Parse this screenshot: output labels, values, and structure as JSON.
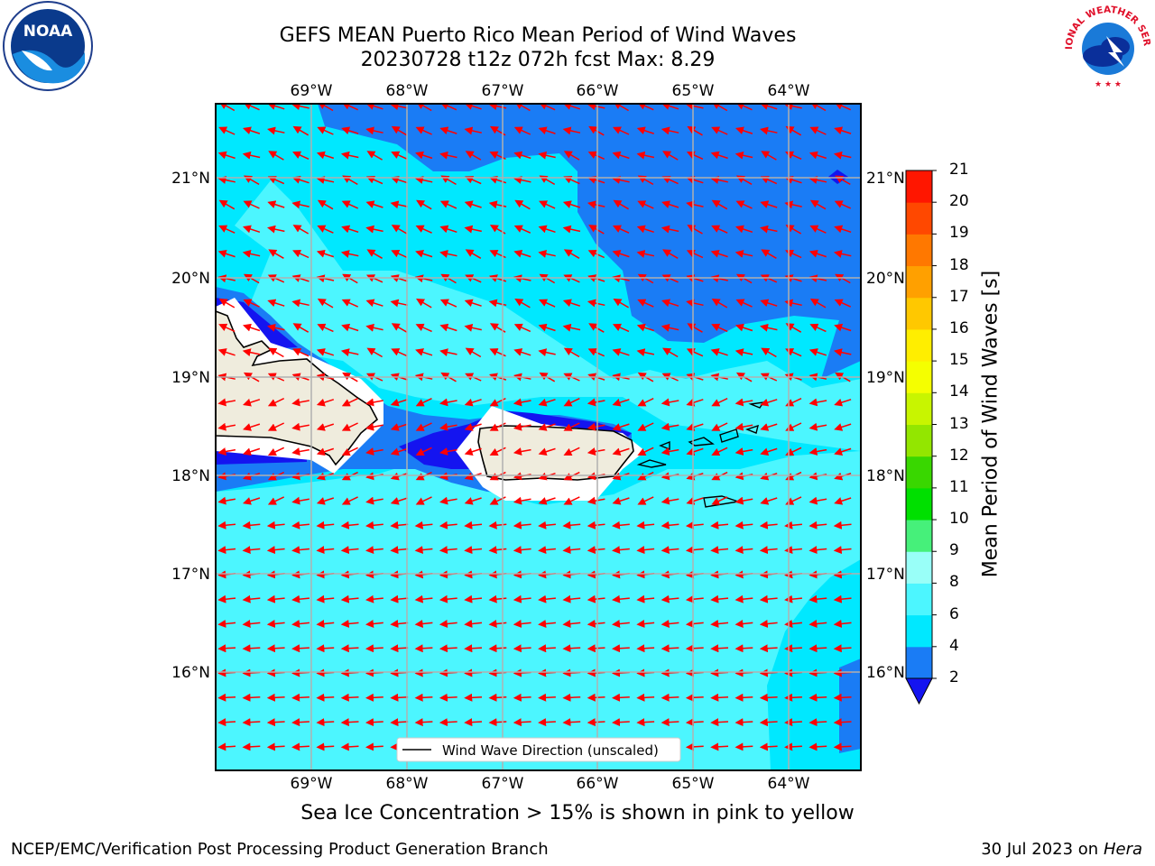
{
  "header": {
    "title_line1": "GEFS MEAN Puerto Rico Mean Period of Wind Waves",
    "title_line2": "20230728 t12z 072h fcst   Max: 8.29"
  },
  "logos": {
    "left": "noaa-logo",
    "right": "national-weather-service-logo",
    "nws_text": "NATIONAL WEATHER SERVICE"
  },
  "map": {
    "lon_labels": [
      "69°W",
      "68°W",
      "67°W",
      "66°W",
      "65°W",
      "64°W"
    ],
    "lat_labels": [
      "21°N",
      "20°N",
      "19°N",
      "18°N",
      "17°N",
      "16°N"
    ],
    "legend": "Wind Wave Direction (unscaled)",
    "arrow_color": "#ff0000"
  },
  "colorbar": {
    "label": "Mean Period of Wind Waves [s]",
    "ticks": [
      "2",
      "4",
      "6",
      "8",
      "9",
      "10",
      "11",
      "12",
      "13",
      "14",
      "15",
      "16",
      "17",
      "18",
      "19",
      "20",
      "21"
    ],
    "colors": [
      "#1a7cf5",
      "#00e8ff",
      "#4cf6ff",
      "#99fff8",
      "#46f07a",
      "#00e000",
      "#39d700",
      "#93e600",
      "#c8f500",
      "#f5ff00",
      "#ffee00",
      "#ffc800",
      "#ffa000",
      "#ff7800",
      "#ff4800",
      "#ff1600"
    ],
    "under_color": "#1414f0"
  },
  "subtitle": "Sea Ice Concentration > 15% is shown in pink to yellow",
  "footer": {
    "left": "NCEP/EMC/Verification Post Processing Product Generation Branch",
    "right_date": "30 Jul 2023 on ",
    "right_host": "Hera"
  }
}
